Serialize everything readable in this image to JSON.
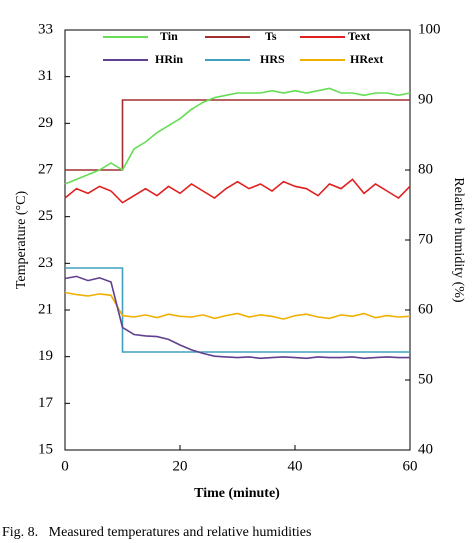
{
  "chart_data": {
    "type": "line",
    "xlabel": "Time (minute)",
    "ylabel": "Temperature (°C)",
    "y2label": "Relative humidity (%)",
    "caption": "Fig. 8.   Measured temperatures and relative humidities",
    "x": [
      0,
      2,
      4,
      6,
      8,
      10,
      12,
      14,
      16,
      18,
      20,
      22,
      24,
      26,
      28,
      30,
      32,
      34,
      36,
      38,
      40,
      42,
      44,
      46,
      48,
      50,
      52,
      54,
      56,
      58,
      60
    ],
    "xlim": [
      0,
      60
    ],
    "xticks": [
      0,
      20,
      40,
      60
    ],
    "ylim": [
      15,
      33
    ],
    "yticks": [
      15,
      17,
      19,
      21,
      23,
      25,
      27,
      29,
      31,
      33
    ],
    "y2lim": [
      40,
      100
    ],
    "y2ticks": [
      40,
      50,
      60,
      70,
      80,
      90,
      100
    ],
    "series": [
      {
        "name": "Tin",
        "color": "#66dd55",
        "values": [
          26.4,
          26.6,
          26.8,
          27.0,
          27.3,
          27.0,
          27.9,
          28.2,
          28.6,
          28.9,
          29.2,
          29.6,
          29.9,
          30.1,
          30.2,
          30.3,
          30.3,
          30.3,
          30.4,
          30.3,
          30.4,
          30.3,
          30.4,
          30.5,
          30.3,
          30.3,
          30.2,
          30.3,
          30.3,
          30.2,
          30.3
        ]
      },
      {
        "name": "Ts",
        "color": "#a03030",
        "x": [
          0,
          10,
          10,
          60
        ],
        "values": [
          27,
          27,
          30,
          30
        ]
      },
      {
        "name": "Text",
        "color": "#e02020",
        "values": [
          25.8,
          26.2,
          26.0,
          26.3,
          26.1,
          25.6,
          25.9,
          26.2,
          25.9,
          26.3,
          26.0,
          26.4,
          26.1,
          25.8,
          26.2,
          26.5,
          26.2,
          26.4,
          26.1,
          26.5,
          26.3,
          26.2,
          25.9,
          26.4,
          26.2,
          26.6,
          26.0,
          26.4,
          26.1,
          25.8,
          26.3
        ]
      },
      {
        "name": "HRin",
        "color": "#604090",
        "axis": "y2",
        "values": [
          64.5,
          64.8,
          64.2,
          64.6,
          64.0,
          57.5,
          56.5,
          56.3,
          56.2,
          55.8,
          55.0,
          54.3,
          53.8,
          53.4,
          53.3,
          53.2,
          53.3,
          53.1,
          53.2,
          53.3,
          53.2,
          53.1,
          53.3,
          53.2,
          53.2,
          53.3,
          53.1,
          53.2,
          53.3,
          53.2,
          53.2
        ]
      },
      {
        "name": "HRS",
        "color": "#40a0c0",
        "axis": "y2",
        "x": [
          0,
          10,
          10,
          60
        ],
        "values": [
          66,
          66,
          54,
          54
        ]
      },
      {
        "name": "HRext",
        "color": "#f0b000",
        "axis": "y2",
        "values": [
          62.5,
          62.2,
          62.0,
          62.3,
          62.1,
          59.2,
          59.0,
          59.3,
          58.9,
          59.4,
          59.1,
          59.0,
          59.3,
          58.8,
          59.2,
          59.5,
          59.0,
          59.3,
          59.1,
          58.7,
          59.2,
          59.4,
          59.0,
          58.8,
          59.3,
          59.1,
          59.5,
          58.9,
          59.2,
          59.0,
          59.1
        ]
      }
    ]
  }
}
